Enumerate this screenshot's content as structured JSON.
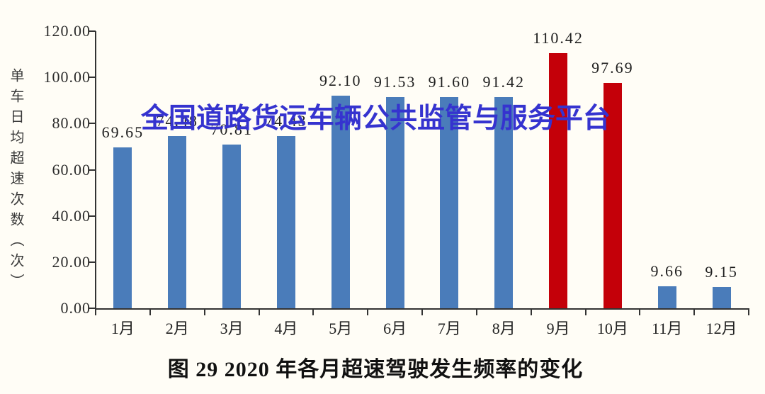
{
  "watermark": {
    "text": "全国道路货运车辆公共监管与服务平台",
    "color": "#3533cf"
  },
  "chart_data": {
    "type": "bar",
    "title": "图 29 2020 年各月超速驾驶发生频率的变化",
    "xlabel": "",
    "ylabel": "单车日均超速次数（次）",
    "categories": [
      "1月",
      "2月",
      "3月",
      "4月",
      "5月",
      "6月",
      "7月",
      "8月",
      "9月",
      "10月",
      "11月",
      "12月"
    ],
    "values": [
      69.65,
      74.48,
      70.81,
      74.43,
      92.1,
      91.53,
      91.6,
      91.42,
      110.42,
      97.69,
      9.66,
      9.15
    ],
    "value_labels": [
      "69.65",
      "74.48",
      "70.81",
      "74.43",
      "92.10",
      "91.53",
      "91.60",
      "91.42",
      "110.42",
      "97.69",
      "9.66",
      "9.15"
    ],
    "bar_colors": [
      "blue",
      "blue",
      "blue",
      "blue",
      "blue",
      "blue",
      "blue",
      "blue",
      "red",
      "red",
      "blue",
      "blue"
    ],
    "colors": {
      "blue": "#4a7cba",
      "red": "#c40009"
    },
    "ylim": [
      0,
      120
    ],
    "ytick_labels": [
      "0.00",
      "20.00",
      "40.00",
      "60.00",
      "80.00",
      "100.00",
      "120.00"
    ],
    "grid": false,
    "legend": null
  }
}
